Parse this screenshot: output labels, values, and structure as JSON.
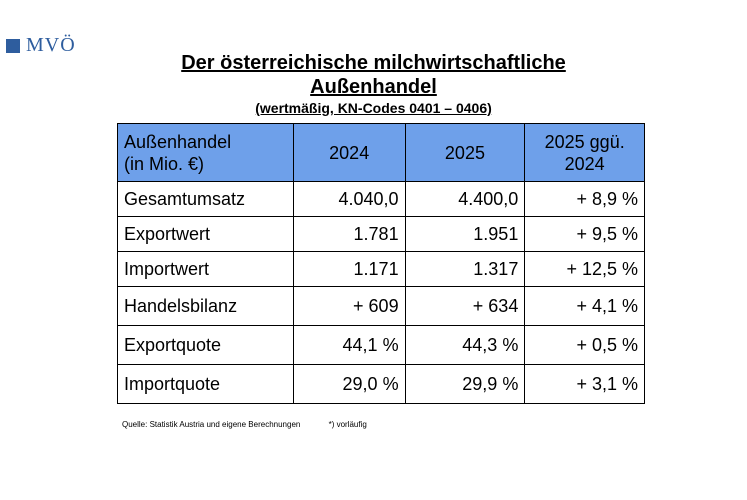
{
  "logo": {
    "text": "MVÖ"
  },
  "title": {
    "line1": "Der österreichische milchwirtschaftliche",
    "line2": "Außenhandel",
    "subtitle": "(wertmäßig, KN-Codes 0401 – 0406)"
  },
  "table": {
    "header": {
      "label_line1": "Außenhandel",
      "label_line2": "(in Mio. €)",
      "col1": "2024",
      "col2": "2025",
      "col3_line1": "2025 ggü.",
      "col3_line2": "2024"
    },
    "rows": [
      {
        "label": "Gesamtumsatz",
        "v2024": "4.040,0",
        "v2025": "4.400,0",
        "change": "+ 8,9 %"
      },
      {
        "label": "Exportwert",
        "v2024": "1.781",
        "v2025": "1.951",
        "change": "+ 9,5 %"
      },
      {
        "label": "Importwert",
        "v2024": "1.171",
        "v2025": "1.317",
        "change": "+ 12,5 %"
      },
      {
        "label": "Handelsbilanz",
        "v2024": "+ 609",
        "v2025": "+ 634",
        "change": "+ 4,1 %"
      },
      {
        "label": "Exportquote",
        "v2024": "44,1 %",
        "v2025": "44,3 %",
        "change": "+ 0,5 %"
      },
      {
        "label": "Importquote",
        "v2024": "29,0 %",
        "v2025": "29,9 %",
        "change": "+ 3,1 %"
      }
    ]
  },
  "footnote": {
    "source": "Quelle: Statistik Austria und eigene Berechnungen",
    "note": "*) vorläufig"
  }
}
